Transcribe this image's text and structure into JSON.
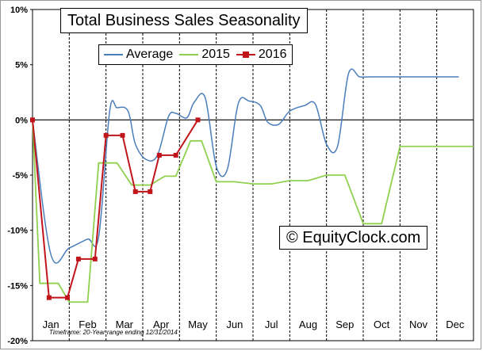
{
  "chart_data": {
    "type": "line",
    "title": "Total Business Sales Seasonality",
    "ylim": [
      -20,
      10
    ],
    "y_ticks": [
      "10%",
      "5%",
      "0%",
      "-5%",
      "-10%",
      "-15%",
      "-20%"
    ],
    "y_tick_values": [
      10,
      5,
      0,
      -5,
      -10,
      -15,
      -20
    ],
    "categories": [
      "Jan",
      "Feb",
      "Mar",
      "Apr",
      "May",
      "Jun",
      "Jul",
      "Aug",
      "Sep",
      "Oct",
      "Nov",
      "Dec"
    ],
    "grid": true,
    "legend_position": "top-left",
    "series": [
      {
        "name": "Average",
        "color": "#4a7ebb",
        "style": "smooth",
        "x": [
          0,
          0.5,
          1.0,
          1.5,
          1.8,
          2.1,
          2.3,
          2.6,
          2.8,
          3.1,
          3.4,
          3.7,
          3.9,
          4.2,
          4.4,
          4.7,
          5.0,
          5.3,
          5.6,
          5.9,
          6.2,
          6.4,
          6.7,
          7.0,
          7.4,
          7.7,
          8.0,
          8.3,
          8.6,
          8.9,
          9.2,
          9.5,
          9.8,
          10.1,
          10.4,
          10.7,
          11.0,
          11.3,
          11.6
        ],
        "values": [
          0,
          -12.2,
          -11.6,
          -10.8,
          -10.6,
          0.8,
          1.1,
          0.8,
          -2.2,
          -3.6,
          -3.2,
          0.3,
          0.6,
          0.2,
          1.6,
          2.0,
          -4.2,
          -4.5,
          1.5,
          1.7,
          1.3,
          -0.2,
          -0.4,
          0.8,
          1.3,
          1.4,
          -2.2,
          -2.4,
          4.2,
          3.9,
          3.9,
          3.9,
          3.9,
          3.9,
          3.9,
          3.9,
          3.9,
          3.9,
          3.9
        ]
      },
      {
        "name": "2015",
        "color": "#8fd14f",
        "style": "straight",
        "x": [
          0,
          0.2,
          0.7,
          1.0,
          1.5,
          1.8,
          2.3,
          2.7,
          3.2,
          3.6,
          3.9,
          4.3,
          4.6,
          5.0,
          5.5,
          6.0,
          6.5,
          7.0,
          7.5,
          8.0,
          8.5,
          9.0,
          9.5,
          10.0,
          10.4,
          10.7,
          11.0,
          11.5,
          12.0
        ],
        "values": [
          0,
          -14.8,
          -14.8,
          -16.5,
          -16.5,
          -3.9,
          -3.9,
          -5.9,
          -5.9,
          -5.1,
          -5.1,
          -1.9,
          -1.9,
          -5.6,
          -5.6,
          -5.8,
          -5.8,
          -5.5,
          -5.5,
          -5.0,
          -5.0,
          -9.4,
          -9.4,
          -2.4,
          -2.4,
          -2.4,
          -2.4,
          -2.4,
          -2.4
        ]
      },
      {
        "name": "2016",
        "color": "#c0151b",
        "style": "markers",
        "x": [
          0,
          0.45,
          0.95,
          1.25,
          1.7,
          2.0,
          2.45,
          2.8,
          3.2,
          3.45,
          3.9,
          4.5
        ],
        "values": [
          0,
          -16.1,
          -16.1,
          -12.6,
          -12.6,
          -1.4,
          -1.4,
          -6.5,
          -6.5,
          -3.2,
          -3.2,
          0
        ]
      }
    ]
  },
  "watermark": "© EquityClock.com",
  "footnote": "Timeframe: 20-Year range ending 12/31/2014"
}
